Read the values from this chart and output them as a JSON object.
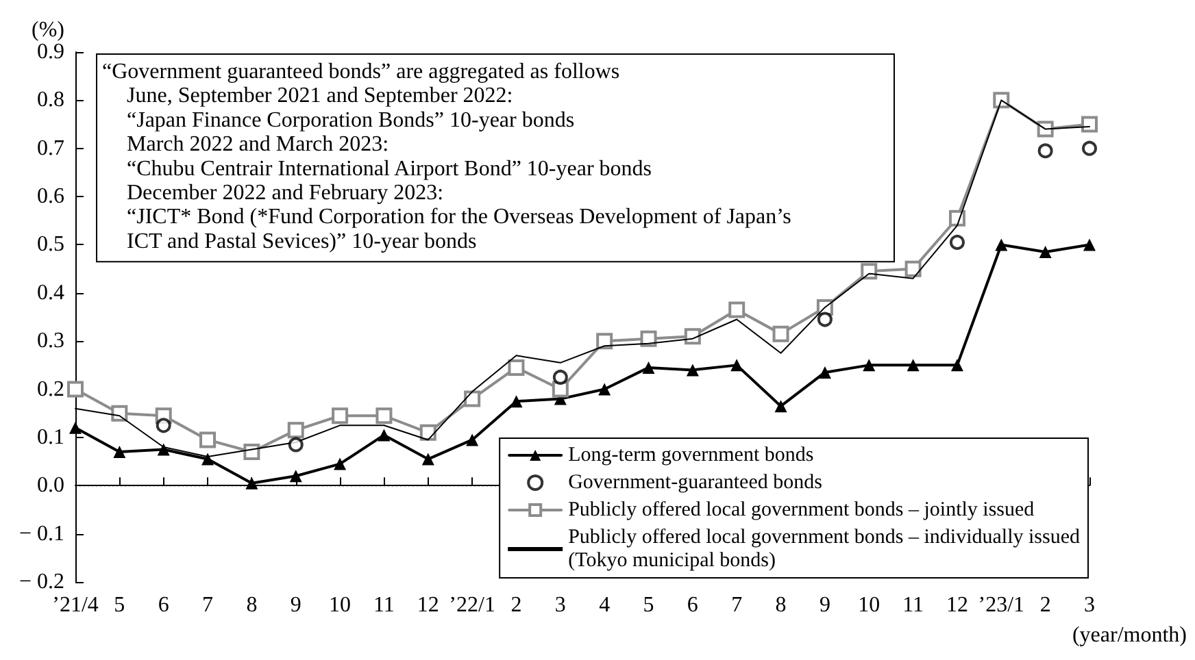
{
  "chart_data": {
    "type": "line",
    "ylabel": "(%)",
    "xlabel": "(year/month)",
    "categories": [
      "’21/4",
      "5",
      "6",
      "7",
      "8",
      "9",
      "10",
      "11",
      "12",
      "’22/1",
      "2",
      "3",
      "4",
      "5",
      "6",
      "7",
      "8",
      "9",
      "10",
      "11",
      "12",
      "’23/1",
      "2",
      "3"
    ],
    "ylim": [
      -0.2,
      0.9
    ],
    "yticks": [
      {
        "value": -0.2,
        "label": "− 0.2"
      },
      {
        "value": -0.1,
        "label": "− 0.1"
      },
      {
        "value": 0,
        "label": "0.0"
      },
      0.1,
      0.2,
      0.3,
      0.4,
      0.5,
      0.6,
      0.7,
      0.8,
      0.9
    ],
    "grid": false,
    "legend": "bottom right",
    "ref_lines": [
      {
        "axis": "y",
        "value": 0,
        "color": "#000000",
        "line_style": "dotted"
      }
    ],
    "annotations": [
      "“Government guaranteed bonds” are aggregated as follows\nJune, September 2021 and September 2022:\n“Japan Finance Corporation Bonds” 10-year bonds\nMarch 2022 and March 2023:\n“Chubu Centrair International Airport Bond” 10-year bonds\nDecember 2022 and February 2023:\n“JICT* Bond (*Fund Corporation for the Overseas Development of Japan’s\nICT and Pastal Sevices)” 10-year bonds"
    ],
    "series": [
      {
        "name": "Long-term government bonds",
        "color": "#000000",
        "marker": "triangle",
        "line_style": "solid",
        "values": [
          0.12,
          0.07,
          0.075,
          0.055,
          0.005,
          0.02,
          0.045,
          0.105,
          0.055,
          0.095,
          0.175,
          0.18,
          0.2,
          0.245,
          0.24,
          0.25,
          0.165,
          0.235,
          0.25,
          0.25,
          0.25,
          0.5,
          0.485,
          0.5
        ]
      },
      {
        "name": "Government-guaranteed bonds",
        "type": "scatter",
        "color": "#000000",
        "marker": "circle",
        "line_style": "dashed",
        "values": [
          null,
          null,
          0.125,
          null,
          null,
          0.085,
          null,
          null,
          null,
          null,
          null,
          0.225,
          null,
          null,
          null,
          null,
          null,
          0.345,
          null,
          null,
          0.505,
          null,
          0.695,
          0.7
        ]
      },
      {
        "name": "Publicly offered local government bonds – jointly issued",
        "color": "#8c8c8c",
        "marker": "square",
        "line_style": "solid",
        "values": [
          0.2,
          0.15,
          0.145,
          0.095,
          0.07,
          0.115,
          0.145,
          0.145,
          0.11,
          0.18,
          0.245,
          0.2,
          0.3,
          0.305,
          0.31,
          0.365,
          0.315,
          0.37,
          0.445,
          0.45,
          0.555,
          0.8,
          0.74,
          0.75
        ]
      },
      {
        "name": "Publicly offered local government bonds – individually issued\n(Tokyo municipal bonds)",
        "color": "#000000",
        "marker": "none",
        "line_style": "solid",
        "values": [
          0.16,
          0.145,
          0.08,
          0.06,
          0.075,
          0.09,
          0.125,
          0.125,
          0.095,
          0.195,
          0.27,
          0.255,
          0.29,
          0.295,
          0.305,
          0.345,
          0.275,
          0.37,
          0.44,
          0.43,
          0.54,
          0.8,
          0.74,
          0.745
        ]
      }
    ]
  }
}
